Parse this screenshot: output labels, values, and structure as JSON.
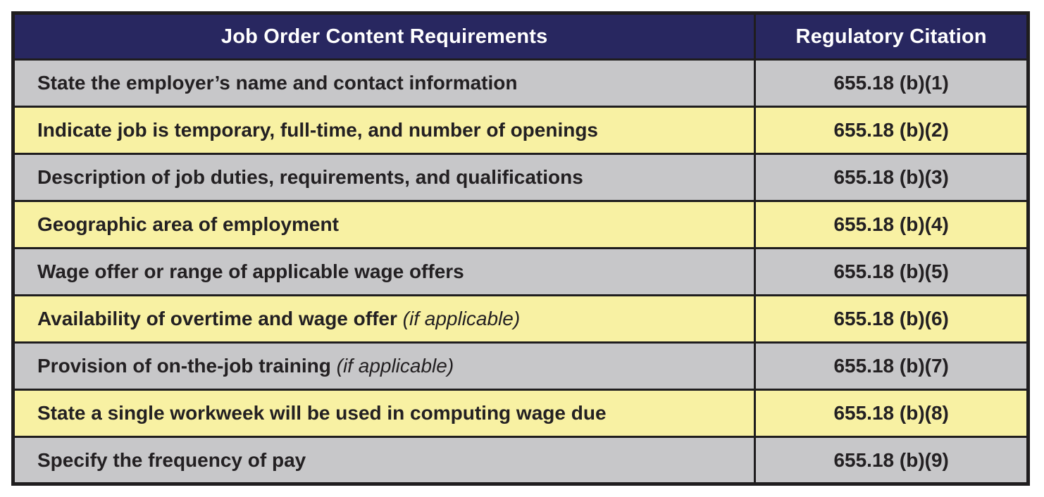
{
  "table": {
    "columns": [
      {
        "label": "Job Order Content Requirements"
      },
      {
        "label": "Regulatory Citation"
      }
    ],
    "rows": [
      {
        "requirement": "State the employer’s name and contact information",
        "note": "",
        "citation": "655.18 (b)(1)",
        "shade": "gray"
      },
      {
        "requirement": "Indicate job is temporary, full-time, and number of openings",
        "note": "",
        "citation": "655.18 (b)(2)",
        "shade": "yellow"
      },
      {
        "requirement": "Description of job duties, requirements, and qualifications",
        "note": "",
        "citation": "655.18 (b)(3)",
        "shade": "gray"
      },
      {
        "requirement": "Geographic area of employment",
        "note": "",
        "citation": "655.18 (b)(4)",
        "shade": "yellow"
      },
      {
        "requirement": "Wage offer or range of applicable wage offers",
        "note": "",
        "citation": "655.18 (b)(5)",
        "shade": "gray"
      },
      {
        "requirement": "Availability of overtime and wage offer",
        "note": "(if applicable)",
        "citation": "655.18 (b)(6)",
        "shade": "yellow"
      },
      {
        "requirement": "Provision of on-the-job training",
        "note": "(if applicable)",
        "citation": "655.18 (b)(7)",
        "shade": "gray"
      },
      {
        "requirement": "State a single workweek will be used in computing wage due",
        "note": "",
        "citation": "655.18 (b)(8)",
        "shade": "yellow"
      },
      {
        "requirement": "Specify the frequency of pay",
        "note": "",
        "citation": "655.18 (b)(9)",
        "shade": "gray"
      }
    ]
  },
  "colors": {
    "header_bg": "#282760",
    "header_text": "#ffffff",
    "row_gray": "#c7c7c9",
    "row_yellow": "#f8f1a3",
    "border": "#1f1d1e",
    "text": "#232022",
    "page_bg": "#ffffff"
  }
}
